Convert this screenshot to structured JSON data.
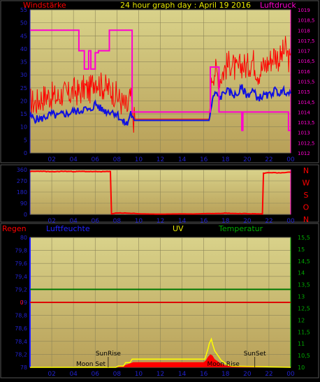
{
  "colors": {
    "background": "#000000",
    "panel_border": "#555555",
    "plot_bg_top": "#d9d28a",
    "plot_bg_bottom": "#b8a058",
    "grid": "#8c8458",
    "tick_label": "#2222cc",
    "title": "#e8e800",
    "wind": "#ff0000",
    "gust_line": "#1010e0",
    "pressure": "#ff00d0",
    "direction": "#ff0000",
    "direction_labels": "#ff0000",
    "rain_label": "#ff0000",
    "humidity_label": "#2222ff",
    "uv_label": "#e8e800",
    "temperature_label": "#00aa00",
    "humidity_axis": "#2222ff",
    "temperature_axis": "#00aa00",
    "uv_fill": "#ff0000",
    "uv_outline": "#ffff00",
    "temperature_line": "#007700",
    "humidity_line": "#dd0000",
    "sun_moon_text": "#000000"
  },
  "chart_data": [
    {
      "id": "wind_pressure",
      "type": "line",
      "title": "24 hour graph day : April 19 2016",
      "ylabel_left": "Windstärke",
      "ylabel_right": "Luftdruck",
      "x_ticks": [
        "02",
        "04",
        "06",
        "08",
        "10",
        "12",
        "14",
        "16",
        "18",
        "20",
        "22",
        "00"
      ],
      "xlim": [
        0,
        24
      ],
      "ylim_left": [
        0,
        55
      ],
      "y_ticks_left": [
        "0",
        "5",
        "10",
        "15",
        "20",
        "25",
        "30",
        "35",
        "40",
        "45",
        "50",
        "55"
      ],
      "ylim_right": [
        1012,
        1019
      ],
      "y_ticks_right": [
        "1012",
        "1012,5",
        "1013",
        "1013,5",
        "1014",
        "1014,5",
        "1015",
        "1015,5",
        "1016",
        "1016,5",
        "1017",
        "1017,5",
        "1018",
        "1018,5",
        "1019"
      ],
      "grid": true,
      "series": [
        {
          "role": "wind_max",
          "axis": "left",
          "x": [
            0,
            0.5,
            1,
            1.5,
            2,
            2.5,
            3,
            3.5,
            4,
            4.5,
            5,
            5.5,
            6,
            6.5,
            7,
            7.5,
            8,
            8.5,
            9,
            9.25,
            9.5,
            10,
            11,
            12,
            13,
            14,
            15,
            16,
            16.5,
            16.75,
            17,
            17.5,
            18,
            18.5,
            19,
            19.5,
            20,
            20.5,
            21,
            21.5,
            22,
            22.5,
            23,
            23.5,
            24
          ],
          "values": [
            20,
            19,
            21,
            22,
            22,
            21,
            23,
            22,
            24,
            23,
            25,
            24,
            29,
            26,
            25,
            24,
            22,
            19,
            17,
            22,
            13,
            13,
            13,
            13,
            13,
            13,
            13,
            13,
            13,
            30,
            32,
            29,
            33,
            35,
            31,
            34,
            33,
            36,
            31,
            33,
            35,
            38,
            36,
            40,
            34
          ]
        },
        {
          "role": "wind_avg",
          "axis": "left",
          "x": [
            0,
            0.5,
            1,
            1.5,
            2,
            2.5,
            3,
            3.5,
            4,
            4.5,
            5,
            5.5,
            6,
            6.5,
            7,
            7.5,
            8,
            8.5,
            9,
            9.25,
            9.5,
            10,
            11,
            12,
            13,
            14,
            15,
            16,
            16.5,
            16.75,
            17,
            17.5,
            18,
            18.5,
            19,
            19.5,
            20,
            20.5,
            21,
            21.5,
            22,
            22.5,
            23,
            23.5,
            24
          ],
          "values": [
            14,
            13,
            13,
            14,
            15,
            14,
            15,
            15,
            16,
            16,
            17,
            16,
            19,
            17,
            16,
            16,
            15,
            12,
            11,
            16,
            12.5,
            12.5,
            12.5,
            12.5,
            12.5,
            12.5,
            12.5,
            12.5,
            12.5,
            19,
            23,
            21,
            24,
            23,
            22,
            25,
            22,
            24,
            21,
            22,
            22,
            24,
            23,
            24,
            22
          ]
        },
        {
          "role": "pressure",
          "axis": "right",
          "x": [
            0,
            4.5,
            4.5,
            5.0,
            5.0,
            5.4,
            5.4,
            5.6,
            5.6,
            6.0,
            6.0,
            6.3,
            6.3,
            7.3,
            7.3,
            9.4,
            9.4,
            16.6,
            16.6,
            17.4,
            17.4,
            17.6,
            17.6,
            19.5,
            19.5,
            19.6,
            19.6,
            19.8,
            19.8,
            23.8,
            23.8,
            24
          ],
          "values": [
            1018,
            1018,
            1017,
            1017,
            1016.1,
            1016.1,
            1017,
            1017,
            1016.1,
            1016.1,
            1016.9,
            1016.9,
            1017,
            1017,
            1018,
            1018,
            1014,
            1014,
            1016.2,
            1016.2,
            1014,
            1014,
            1014,
            1014,
            1013.1,
            1013.1,
            1014,
            1014,
            1014,
            1014,
            1013.1,
            1013.1
          ]
        }
      ]
    },
    {
      "id": "wind_direction",
      "type": "line",
      "x_ticks": [
        "02",
        "04",
        "06",
        "08",
        "10",
        "12",
        "14",
        "16",
        "18",
        "20",
        "22",
        "00"
      ],
      "xlim": [
        0,
        24
      ],
      "ylim": [
        0,
        360
      ],
      "y_ticks": [
        "0",
        "90",
        "180",
        "270",
        "360"
      ],
      "direction_labels": [
        "N",
        "W",
        "S",
        "O",
        "N"
      ],
      "grid": true,
      "series": [
        {
          "role": "direction",
          "x": [
            0,
            1,
            2,
            3,
            4,
            5,
            6,
            7,
            7.45,
            7.5,
            8,
            9,
            10,
            11,
            12,
            13,
            14,
            15,
            16,
            17,
            18,
            19,
            20,
            21,
            21.4,
            21.45,
            22,
            23,
            24
          ],
          "values": [
            345,
            348,
            343,
            347,
            345,
            346,
            344,
            345,
            345,
            5,
            12,
            10,
            5,
            3,
            2,
            3,
            4,
            3,
            6,
            8,
            10,
            7,
            6,
            4,
            4,
            330,
            338,
            334,
            340
          ]
        }
      ]
    },
    {
      "id": "rain_humidity_uv_temp",
      "type": "area",
      "label_rain": "Regen",
      "label_humidity": "Luftfeuchte",
      "label_uv": "UV",
      "label_temperature": "Temperatur",
      "x_ticks": [
        "02",
        "04",
        "06",
        "08",
        "10",
        "12",
        "14",
        "16",
        "18",
        "20",
        "22",
        "00"
      ],
      "xlim": [
        0,
        24
      ],
      "ylim_left": [
        78,
        80
      ],
      "y_ticks_left": [
        "78",
        "78,2",
        "78,4",
        "78,6",
        "78,8",
        "79",
        "79,2",
        "79,4",
        "79,6",
        "79,8",
        "80"
      ],
      "ylim_right": [
        10,
        15.5
      ],
      "y_ticks_right": [
        "10",
        "10,5",
        "11",
        "11,5",
        "12",
        "12,5",
        "13",
        "13,5",
        "14",
        "14,5",
        "15",
        "15,5"
      ],
      "rain_zero_label": "0",
      "annotations": [
        "SunRise",
        "Moon Set",
        "SunSet",
        "Moon Rise"
      ],
      "annotation_x": [
        7.2,
        5.6,
        20.7,
        17.8
      ],
      "grid": true,
      "series": [
        {
          "role": "humidity",
          "axis": "left",
          "x": [
            0,
            24
          ],
          "values": [
            79,
            79
          ]
        },
        {
          "role": "temperature",
          "axis": "right",
          "x": [
            0,
            24
          ],
          "values": [
            13.3,
            13.3
          ]
        },
        {
          "role": "uv_outline",
          "axis": "right",
          "x": [
            0,
            7.9,
            8.1,
            8.6,
            8.8,
            9.2,
            9.4,
            16.1,
            16.2,
            16.4,
            16.5,
            16.7,
            16.8,
            17.0,
            17.3,
            17.6,
            17.9,
            18.2,
            18.6,
            24
          ],
          "values": [
            10,
            10,
            10.05,
            10.05,
            10.2,
            10.2,
            10.35,
            10.35,
            10.5,
            10.8,
            11.0,
            11.2,
            11.0,
            10.7,
            10.5,
            10.3,
            10.2,
            10.1,
            10.05,
            10
          ]
        },
        {
          "role": "uv_fill",
          "axis": "right",
          "x": [
            0,
            7.9,
            8.6,
            8.8,
            9.4,
            9.5,
            16.0,
            16.2,
            16.4,
            16.6,
            16.8,
            17.0,
            17.3,
            17.6,
            18.0,
            18.6,
            24
          ],
          "values": [
            10,
            10,
            10.05,
            10.1,
            10.2,
            10.22,
            10.22,
            10.3,
            10.45,
            10.55,
            10.5,
            10.35,
            10.25,
            10.15,
            10.08,
            10.03,
            10
          ]
        }
      ]
    }
  ]
}
